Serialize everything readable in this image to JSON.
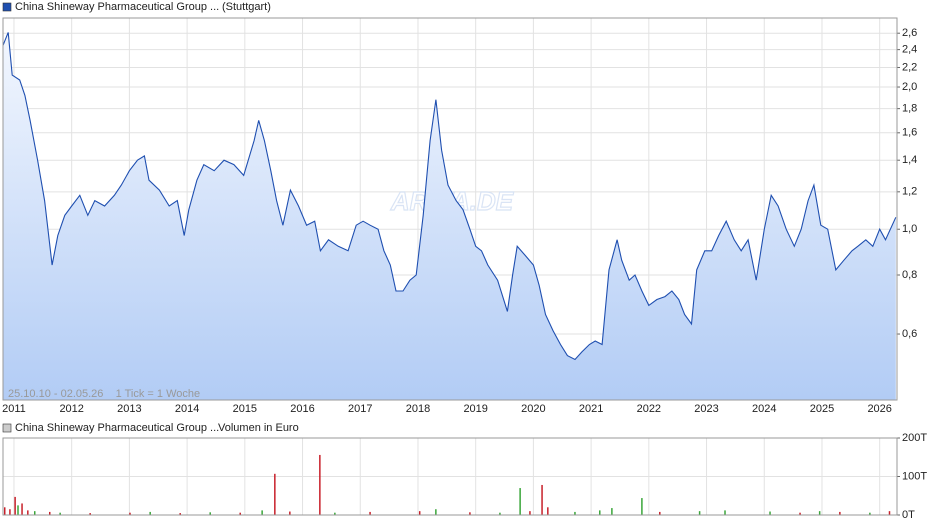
{
  "chart_data": [
    {
      "type": "area",
      "title": "China Shineway Pharmaceutical Group ...",
      "subtitle": "(Stuttgart)",
      "annotation": "25.10.10 - 02.05.26    1 Tick = 1 Woche",
      "watermark": "ARIVA.DE",
      "log_scale": true,
      "grid": true,
      "xlim": [
        2010.81,
        2026.3
      ],
      "xticks": [
        2011,
        2012,
        2013,
        2014,
        2015,
        2016,
        2017,
        2018,
        2019,
        2020,
        2021,
        2022,
        2023,
        2024,
        2025,
        2026
      ],
      "ylim": [
        0.435,
        2.8
      ],
      "yticks": [
        {
          "value": 0.6,
          "label": "0,6"
        },
        {
          "value": 0.8,
          "label": "0,8"
        },
        {
          "value": 1.0,
          "label": "1,0"
        },
        {
          "value": 1.2,
          "label": "1,2"
        },
        {
          "value": 1.4,
          "label": "1,4"
        },
        {
          "value": 1.6,
          "label": "1,6"
        },
        {
          "value": 1.8,
          "label": "1,8"
        },
        {
          "value": 2.0,
          "label": "2,0"
        },
        {
          "value": 2.2,
          "label": "2,2"
        },
        {
          "value": 2.4,
          "label": "2,4"
        },
        {
          "value": 2.6,
          "label": "2,6"
        }
      ],
      "series": [
        {
          "color": "#1f4fb0",
          "x": [
            2010.81,
            2010.9,
            2010.97,
            2011.1,
            2011.19,
            2011.28,
            2011.41,
            2011.53,
            2011.66,
            2011.76,
            2011.88,
            2012.0,
            2012.14,
            2012.28,
            2012.4,
            2012.57,
            2012.74,
            2012.86,
            2013.0,
            2013.14,
            2013.26,
            2013.34,
            2013.52,
            2013.69,
            2013.83,
            2013.95,
            2014.03,
            2014.17,
            2014.29,
            2014.47,
            2014.64,
            2014.81,
            2014.98,
            2015.16,
            2015.24,
            2015.34,
            2015.45,
            2015.55,
            2015.66,
            2015.79,
            2015.93,
            2016.07,
            2016.21,
            2016.31,
            2016.45,
            2016.62,
            2016.79,
            2016.93,
            2017.05,
            2017.17,
            2017.31,
            2017.41,
            2017.52,
            2017.62,
            2017.74,
            2017.86,
            2017.97,
            2018.09,
            2018.21,
            2018.31,
            2018.41,
            2018.52,
            2018.66,
            2018.78,
            2018.9,
            2019.0,
            2019.1,
            2019.21,
            2019.38,
            2019.55,
            2019.64,
            2019.72,
            2019.86,
            2020.0,
            2020.1,
            2020.21,
            2020.34,
            2020.47,
            2020.59,
            2020.72,
            2020.84,
            2020.97,
            2021.07,
            2021.19,
            2021.31,
            2021.45,
            2021.53,
            2021.66,
            2021.76,
            2021.88,
            2022.0,
            2022.14,
            2022.28,
            2022.4,
            2022.52,
            2022.62,
            2022.74,
            2022.83,
            2022.97,
            2023.09,
            2023.21,
            2023.34,
            2023.48,
            2023.6,
            2023.72,
            2023.86,
            2024.0,
            2024.12,
            2024.24,
            2024.38,
            2024.52,
            2024.64,
            2024.76,
            2024.86,
            2024.98,
            2025.1,
            2025.24,
            2025.38,
            2025.52,
            2025.62,
            2025.76,
            2025.88,
            2026.0,
            2026.1,
            2026.28
          ],
          "values": [
            2.45,
            2.61,
            2.12,
            2.07,
            1.92,
            1.7,
            1.4,
            1.15,
            0.84,
            0.97,
            1.07,
            1.12,
            1.18,
            1.07,
            1.15,
            1.12,
            1.18,
            1.24,
            1.33,
            1.4,
            1.43,
            1.27,
            1.21,
            1.12,
            1.15,
            0.97,
            1.1,
            1.27,
            1.37,
            1.33,
            1.4,
            1.37,
            1.3,
            1.54,
            1.7,
            1.54,
            1.33,
            1.15,
            1.02,
            1.21,
            1.12,
            1.02,
            1.04,
            0.9,
            0.95,
            0.92,
            0.9,
            1.02,
            1.04,
            1.02,
            1.0,
            0.9,
            0.84,
            0.74,
            0.74,
            0.78,
            0.8,
            1.07,
            1.54,
            1.88,
            1.47,
            1.24,
            1.15,
            1.1,
            1.0,
            0.92,
            0.9,
            0.84,
            0.78,
            0.67,
            0.8,
            0.92,
            0.88,
            0.84,
            0.76,
            0.66,
            0.61,
            0.57,
            0.54,
            0.53,
            0.55,
            0.57,
            0.58,
            0.57,
            0.82,
            0.95,
            0.86,
            0.78,
            0.8,
            0.74,
            0.69,
            0.71,
            0.72,
            0.74,
            0.71,
            0.66,
            0.63,
            0.82,
            0.9,
            0.9,
            0.97,
            1.04,
            0.95,
            0.9,
            0.95,
            0.78,
            1.0,
            1.18,
            1.12,
            1.0,
            0.92,
            1.0,
            1.15,
            1.24,
            1.02,
            1.0,
            0.82,
            0.86,
            0.9,
            0.92,
            0.95,
            0.92,
            1.0,
            0.95,
            1.06
          ]
        }
      ]
    },
    {
      "type": "bar",
      "title": "China Shineway Pharmaceutical Group ...",
      "subtitle": "Volumen in Euro",
      "grid": true,
      "xlim": [
        2010.81,
        2026.3
      ],
      "xticks": [
        2011,
        2012,
        2013,
        2014,
        2015,
        2016,
        2017,
        2018,
        2019,
        2020,
        2021,
        2022,
        2023,
        2024,
        2025,
        2026
      ],
      "ylim": [
        0,
        200
      ],
      "yticks": [
        {
          "value": 0,
          "label": "0T"
        },
        {
          "value": 100,
          "label": "100T"
        },
        {
          "value": 200,
          "label": "200T"
        }
      ],
      "x": [
        2010.84,
        2010.93,
        2011.02,
        2011.07,
        2011.14,
        2011.24,
        2011.36,
        2011.62,
        2011.8,
        2012.32,
        2013.01,
        2013.36,
        2013.88,
        2014.4,
        2014.92,
        2015.3,
        2015.52,
        2015.78,
        2016.3,
        2016.56,
        2017.17,
        2018.03,
        2018.31,
        2018.9,
        2019.42,
        2019.77,
        2019.94,
        2020.15,
        2020.25,
        2020.72,
        2021.15,
        2021.36,
        2021.88,
        2022.19,
        2022.88,
        2023.32,
        2024.1,
        2024.62,
        2024.96,
        2025.31,
        2025.83,
        2026.17
      ],
      "values": [
        20,
        15,
        47,
        25,
        30,
        12,
        10,
        8,
        6,
        5,
        6,
        8,
        5,
        7,
        6,
        12,
        107,
        9,
        156,
        6,
        8,
        10,
        15,
        7,
        6,
        70,
        10,
        78,
        20,
        8,
        12,
        18,
        44,
        8,
        10,
        12,
        9,
        6,
        10,
        8,
        6,
        10
      ],
      "colors": [
        "#c8202a",
        "#c8202a",
        "#c8202a",
        "#3aa63a",
        "#c8202a",
        "#c8202a",
        "#3aa63a",
        "#c8202a",
        "#3aa63a",
        "#c8202a",
        "#c8202a",
        "#3aa63a",
        "#c8202a",
        "#3aa63a",
        "#c8202a",
        "#3aa63a",
        "#c8202a",
        "#c8202a",
        "#c8202a",
        "#3aa63a",
        "#c8202a",
        "#c8202a",
        "#3aa63a",
        "#c8202a",
        "#3aa63a",
        "#3aa63a",
        "#c8202a",
        "#c8202a",
        "#c8202a",
        "#3aa63a",
        "#3aa63a",
        "#3aa63a",
        "#3aa63a",
        "#c8202a",
        "#3aa63a",
        "#3aa63a",
        "#3aa63a",
        "#c8202a",
        "#3aa63a",
        "#c8202a",
        "#3aa63a",
        "#c8202a"
      ]
    }
  ]
}
